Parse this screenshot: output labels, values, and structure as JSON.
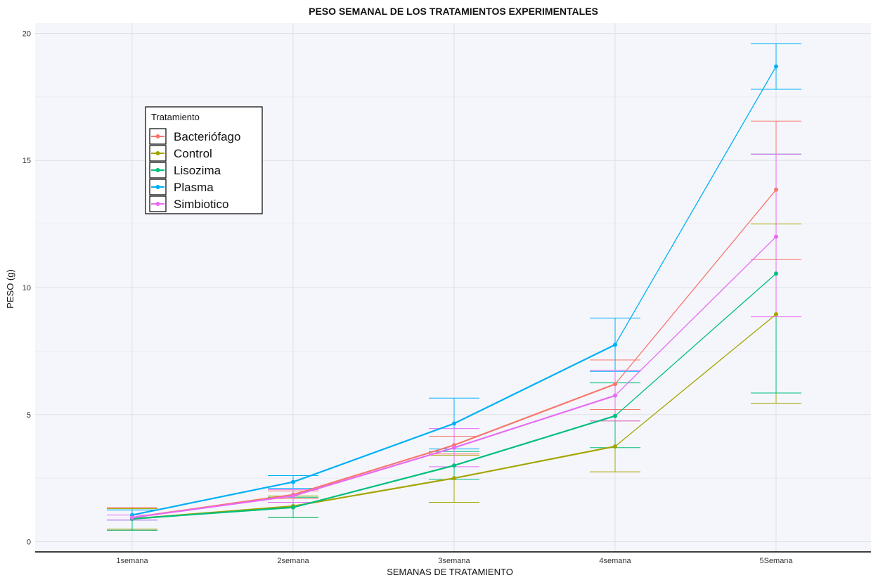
{
  "chart_data": {
    "type": "line",
    "title": "PESO SEMANAL DE LOS TRATAMIENTOS EXPERIMENTALES",
    "xlabel": "SEMANAS DE TRATAMIENTO",
    "ylabel": "PESO (g)",
    "categories": [
      "1semana",
      "2semana",
      "3semana",
      "4semana",
      "5Semana"
    ],
    "ylim": [
      -0.4,
      20.4
    ],
    "yticks": [
      0,
      5,
      10,
      15,
      20
    ],
    "grid": true,
    "legend": {
      "title": "Tratamiento",
      "position": "top-left"
    },
    "series": [
      {
        "name": "Bacteriófago",
        "color": "#F8766D",
        "values": [
          0.95,
          1.85,
          3.8,
          6.2,
          13.85
        ],
        "err_low": [
          0.45,
          1.7,
          3.45,
          5.2,
          11.1
        ],
        "err_high": [
          1.35,
          2.0,
          4.15,
          7.15,
          16.55
        ]
      },
      {
        "name": "Control",
        "color": "#A3A500",
        "values": [
          0.9,
          1.4,
          2.5,
          3.75,
          8.95
        ],
        "err_low": [
          0.5,
          0.95,
          1.55,
          2.75,
          5.45
        ],
        "err_high": [
          1.3,
          1.8,
          3.4,
          4.75,
          12.5
        ]
      },
      {
        "name": "Lisozima",
        "color": "#00BF7D",
        "values": [
          0.9,
          1.35,
          3.0,
          4.95,
          10.55
        ],
        "err_low": [
          0.45,
          0.95,
          2.45,
          3.7,
          5.85
        ],
        "err_high": [
          1.25,
          1.75,
          3.55,
          6.25,
          15.25
        ]
      },
      {
        "name": "Plasma",
        "color": "#00B0F6",
        "values": [
          1.05,
          2.35,
          4.65,
          7.75,
          18.7
        ],
        "err_low": [
          0.85,
          2.1,
          3.65,
          6.7,
          17.8
        ],
        "err_high": [
          1.25,
          2.6,
          5.65,
          8.8,
          19.6
        ]
      },
      {
        "name": "Simbiotico",
        "color": "#E76BF3",
        "values": [
          0.95,
          1.8,
          3.7,
          5.75,
          12.0
        ],
        "err_low": [
          0.85,
          1.55,
          2.95,
          4.75,
          8.85
        ],
        "err_high": [
          1.05,
          2.05,
          4.45,
          6.75,
          15.25
        ]
      }
    ]
  }
}
